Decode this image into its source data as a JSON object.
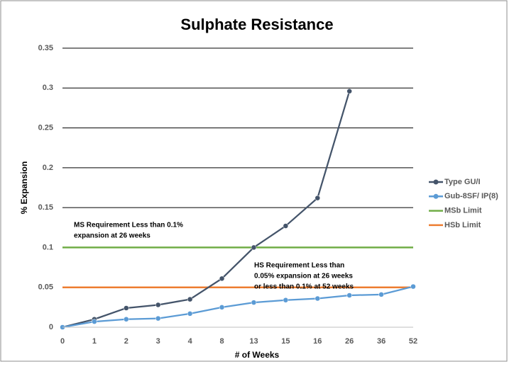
{
  "chart_data": {
    "type": "line",
    "title": "Sulphate Resistance",
    "x_label": "# of Weeks",
    "y_label": "% Expansion",
    "categories": [
      "0",
      "1",
      "2",
      "3",
      "4",
      "8",
      "13",
      "15",
      "16",
      "26",
      "36",
      "52"
    ],
    "series": [
      {
        "name": "Type GU/I",
        "color": "#44546a",
        "marker": true,
        "values": [
          0,
          0.01,
          0.024,
          0.028,
          0.035,
          0.061,
          0.1,
          0.127,
          0.162,
          0.296,
          null,
          null
        ]
      },
      {
        "name": "Gub-8SF/ IP(8)",
        "color": "#5b9bd5",
        "marker": true,
        "values": [
          0,
          0.007,
          0.01,
          0.011,
          0.017,
          0.025,
          0.031,
          0.034,
          0.036,
          0.04,
          0.041,
          0.051
        ]
      },
      {
        "name": "MSb Limit",
        "color": "#70ad47",
        "marker": false,
        "values": [
          0.1,
          0.1,
          0.1,
          0.1,
          0.1,
          0.1,
          0.1,
          0.1,
          0.1,
          0.1,
          0.1,
          0.1
        ]
      },
      {
        "name": "HSb Limit",
        "color": "#ed7d31",
        "marker": false,
        "values": [
          0.05,
          0.05,
          0.05,
          0.05,
          0.05,
          0.05,
          0.05,
          0.05,
          0.05,
          0.05,
          0.05,
          0.05
        ]
      }
    ],
    "ylim": [
      0,
      0.35
    ],
    "yticks": [
      0,
      0.05,
      0.1,
      0.15,
      0.2,
      0.25,
      0.3,
      0.35
    ],
    "grid": true,
    "legend": "right",
    "annotations": [
      {
        "lines": [
          "MS Requirement Less than 0.1%",
          "expansion at 26 weeks"
        ]
      },
      {
        "lines": [
          "HS Requirement Less than",
          "0.05% expansion at 26 weeks",
          "or less than 0.1% at 52 weeks"
        ]
      }
    ]
  }
}
